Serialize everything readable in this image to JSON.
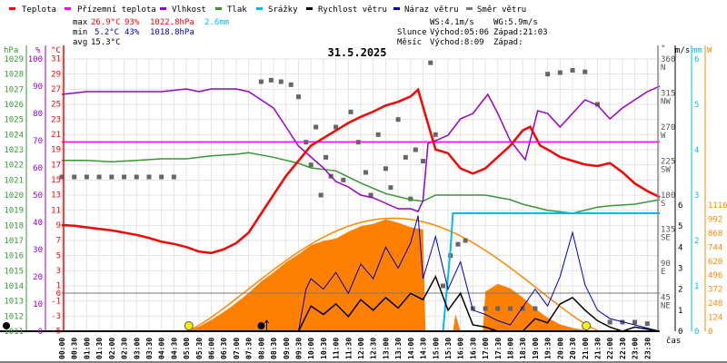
{
  "legend": [
    {
      "label": "Teplota",
      "color": "#ff0000"
    },
    {
      "label": "Přízemní teplota",
      "color": "#ff00ff"
    },
    {
      "label": "Vlhkost",
      "color": "#9900cc"
    },
    {
      "label": "Tlak",
      "color": "#339933"
    },
    {
      "label": "Srážky",
      "color": "#00bbee"
    },
    {
      "label": "Rychlost větru",
      "color": "#000000"
    },
    {
      "label": "Náraz větru",
      "color": "#0000cc"
    },
    {
      "label": "Směr větru",
      "color": "#777777"
    }
  ],
  "stats": {
    "max_label": "max",
    "max_temp": "26.9°C",
    "max_hum": "93%",
    "max_press": "1022.8hPa",
    "rain": "2.6mm",
    "min_label": "min",
    "min_temp": "5.2°C",
    "min_hum": "43%",
    "min_press": "1018.8hPa",
    "avg_label": "avg",
    "avg_temp": "15.3°C",
    "ws": "WS:4.1m/s",
    "wg": "WG:5.9m/s",
    "sun_label": "Slunce",
    "sunrise": "Východ:05:06",
    "sunset": "Západ:21:03",
    "moon_label": "Měsíc",
    "moonrise": "Východ:8:09",
    "moonset": "Západ:"
  },
  "chart_data": {
    "type": "line",
    "title": "31.5.2025",
    "xlabel": "čas",
    "x_range_hours": [
      0,
      24
    ],
    "axis_units": {
      "pressure": "hPa",
      "humidity": "%",
      "temperature": "°C",
      "direction": "°",
      "wind": "m/s",
      "rain": "mm",
      "solar": "W"
    },
    "ticks": {
      "pressure": [
        "1029",
        "1028",
        "1027",
        "1026",
        "1025",
        "1024",
        "1023",
        "1022",
        "1021",
        "1020",
        "1019",
        "1018",
        "1017",
        "1016",
        "1015",
        "1014",
        "1013",
        "1012",
        "1011"
      ],
      "humidity": [
        "100",
        "90",
        "80",
        "70",
        "60",
        "50",
        "40",
        "30",
        "20",
        "10",
        "0"
      ],
      "temperature": [
        "31",
        "29",
        "27",
        "25",
        "23",
        "21",
        "19",
        "17",
        "15",
        "13",
        "11",
        "9",
        "7",
        "5",
        "3",
        "1",
        "0",
        "-1",
        "-3",
        "-5"
      ],
      "direction": [
        [
          "360",
          "N"
        ],
        [
          "315",
          "NW"
        ],
        [
          "270",
          "W"
        ],
        [
          "225",
          "SW"
        ],
        [
          "180",
          "S"
        ],
        [
          "135",
          "SE"
        ],
        [
          "90",
          "E"
        ],
        [
          "45",
          "NE"
        ]
      ],
      "wind": [
        "6",
        "5",
        "4",
        "3",
        "2",
        "1",
        "0"
      ],
      "rain": [
        "6",
        "5",
        "4",
        "3",
        "2",
        "1",
        "0"
      ],
      "solar": [
        "1116",
        "992",
        "868",
        "744",
        "620",
        "496",
        "372",
        "248",
        "124",
        "0"
      ],
      "time": [
        "00:00",
        "00:30",
        "01:00",
        "01:30",
        "02:00",
        "02:30",
        "03:00",
        "03:30",
        "04:00",
        "04:30",
        "05:00",
        "05:30",
        "06:00",
        "06:30",
        "07:00",
        "07:30",
        "08:00",
        "08:30",
        "09:00",
        "09:30",
        "10:00",
        "10:30",
        "11:00",
        "11:30",
        "12:00",
        "12:30",
        "13:00",
        "13:30",
        "14:00",
        "14:30",
        "15:00",
        "15:30",
        "16:00",
        "16:30",
        "17:00",
        "17:30",
        "18:00",
        "18:30",
        "19:00",
        "19:30",
        "20:00",
        "20:30",
        "21:00",
        "21:30",
        "22:00",
        "22:30",
        "23:00",
        "23:30"
      ]
    },
    "apparent_temperature_c": 20,
    "series": {
      "temperature": [
        [
          0,
          9
        ],
        [
          0.5,
          8.9
        ],
        [
          1,
          8.7
        ],
        [
          1.5,
          8.5
        ],
        [
          2,
          8.3
        ],
        [
          2.5,
          8
        ],
        [
          3,
          7.7
        ],
        [
          3.5,
          7.3
        ],
        [
          4,
          6.8
        ],
        [
          4.5,
          6.5
        ],
        [
          5,
          6.1
        ],
        [
          5.5,
          5.5
        ],
        [
          6,
          5.3
        ],
        [
          6.5,
          5.8
        ],
        [
          7,
          6.6
        ],
        [
          7.5,
          8
        ],
        [
          8,
          10.5
        ],
        [
          8.5,
          13
        ],
        [
          9,
          15.5
        ],
        [
          9.5,
          17.5
        ],
        [
          10,
          19.5
        ],
        [
          10.5,
          20.5
        ],
        [
          11,
          21.5
        ],
        [
          11.5,
          22.5
        ],
        [
          12,
          23.3
        ],
        [
          12.5,
          24
        ],
        [
          13,
          24.8
        ],
        [
          13.5,
          25.3
        ],
        [
          14,
          26
        ],
        [
          14.3,
          26.9
        ],
        [
          14.6,
          23.5
        ],
        [
          15,
          19
        ],
        [
          15.5,
          18.5
        ],
        [
          16,
          16.5
        ],
        [
          16.5,
          15.8
        ],
        [
          17,
          16.5
        ],
        [
          17.5,
          18
        ],
        [
          18,
          19.5
        ],
        [
          18.5,
          21.5
        ],
        [
          18.8,
          22
        ],
        [
          19.2,
          19.5
        ],
        [
          19.5,
          19
        ],
        [
          20,
          18
        ],
        [
          20.5,
          17.5
        ],
        [
          21,
          17
        ],
        [
          21.5,
          16.8
        ],
        [
          22,
          17.2
        ],
        [
          22.5,
          16
        ],
        [
          23,
          14.5
        ],
        [
          23.5,
          13.5
        ],
        [
          24,
          12.7
        ]
      ],
      "humidity": [
        [
          0,
          87
        ],
        [
          1,
          88
        ],
        [
          2,
          88
        ],
        [
          3,
          88
        ],
        [
          4,
          88
        ],
        [
          5,
          89
        ],
        [
          5.5,
          88
        ],
        [
          6,
          89
        ],
        [
          7,
          89
        ],
        [
          7.5,
          88
        ],
        [
          8,
          85
        ],
        [
          8.5,
          82
        ],
        [
          9,
          75
        ],
        [
          9.5,
          68
        ],
        [
          10,
          64
        ],
        [
          10.5,
          60
        ],
        [
          11,
          55
        ],
        [
          11.5,
          53
        ],
        [
          12,
          50
        ],
        [
          12.5,
          49
        ],
        [
          13,
          47
        ],
        [
          13.5,
          45
        ],
        [
          14,
          45
        ],
        [
          14.3,
          44
        ],
        [
          14.5,
          48
        ],
        [
          14.7,
          69
        ],
        [
          15,
          70
        ],
        [
          15.5,
          72
        ],
        [
          16,
          78
        ],
        [
          16.5,
          80
        ],
        [
          17.1,
          87
        ],
        [
          17.5,
          80
        ],
        [
          18,
          70
        ],
        [
          18.6,
          63
        ],
        [
          19.1,
          81
        ],
        [
          19.5,
          80
        ],
        [
          20,
          75
        ],
        [
          20.5,
          80
        ],
        [
          21,
          85
        ],
        [
          21.5,
          83
        ],
        [
          22,
          78
        ],
        [
          22.5,
          82
        ],
        [
          23,
          85
        ],
        [
          23.5,
          88
        ],
        [
          24,
          90
        ]
      ],
      "pressure": [
        [
          0,
          1022.3
        ],
        [
          1,
          1022.3
        ],
        [
          2,
          1022.2
        ],
        [
          3,
          1022.3
        ],
        [
          4,
          1022.4
        ],
        [
          5,
          1022.4
        ],
        [
          6,
          1022.6
        ],
        [
          7,
          1022.7
        ],
        [
          7.5,
          1022.8
        ],
        [
          8.5,
          1022.5
        ],
        [
          9.5,
          1022.1
        ],
        [
          10,
          1021.8
        ],
        [
          11,
          1021.6
        ],
        [
          12,
          1020.8
        ],
        [
          13,
          1020.1
        ],
        [
          14,
          1019.7
        ],
        [
          14.5,
          1019.6
        ],
        [
          15,
          1020
        ],
        [
          16,
          1020
        ],
        [
          17,
          1020
        ],
        [
          18,
          1019.7
        ],
        [
          18.5,
          1019.4
        ],
        [
          19.5,
          1019
        ],
        [
          20.5,
          1018.8
        ],
        [
          21.5,
          1019.2
        ],
        [
          22,
          1019.3
        ],
        [
          23,
          1019.4
        ],
        [
          24,
          1019.7
        ]
      ],
      "rain_cumulative_mm": [
        [
          0,
          0
        ],
        [
          15.3,
          0
        ],
        [
          15.6,
          1.8
        ],
        [
          15.7,
          2.6
        ],
        [
          24,
          2.6
        ]
      ],
      "solar_w": [
        [
          5,
          0
        ],
        [
          5.5,
          40
        ],
        [
          6,
          100
        ],
        [
          6.5,
          170
        ],
        [
          7,
          250
        ],
        [
          7.5,
          340
        ],
        [
          8,
          440
        ],
        [
          8.5,
          520
        ],
        [
          9,
          610
        ],
        [
          9.5,
          680
        ],
        [
          10,
          760
        ],
        [
          10.5,
          800
        ],
        [
          11,
          820
        ],
        [
          11.5,
          880
        ],
        [
          12,
          930
        ],
        [
          12.5,
          950
        ],
        [
          13,
          990
        ],
        [
          13.5,
          960
        ],
        [
          14,
          920
        ],
        [
          14.5,
          900
        ],
        [
          14.6,
          0
        ],
        [
          15.7,
          0
        ],
        [
          15.8,
          150
        ],
        [
          16,
          0
        ],
        [
          16.9,
          0
        ],
        [
          17,
          350
        ],
        [
          17.5,
          420
        ],
        [
          18,
          380
        ],
        [
          18.5,
          300
        ],
        [
          19,
          200
        ],
        [
          19.5,
          120
        ],
        [
          20,
          60
        ],
        [
          20.5,
          30
        ],
        [
          21,
          10
        ],
        [
          21.5,
          0
        ]
      ],
      "solar_clear_sky_peak_w": 1000,
      "wind_speed": [
        [
          0,
          0
        ],
        [
          9.5,
          0
        ],
        [
          10,
          1.2
        ],
        [
          10.5,
          0.8
        ],
        [
          11,
          1.3
        ],
        [
          11.5,
          0.7
        ],
        [
          12,
          1.5
        ],
        [
          12.5,
          1.0
        ],
        [
          13,
          1.6
        ],
        [
          13.5,
          1.1
        ],
        [
          14,
          1.8
        ],
        [
          14.5,
          1.5
        ],
        [
          15,
          2.6
        ],
        [
          15.5,
          1.0
        ],
        [
          16,
          1.8
        ],
        [
          16.5,
          0.3
        ],
        [
          17,
          0.2
        ],
        [
          17.5,
          0
        ],
        [
          18.5,
          0
        ],
        [
          19,
          0.6
        ],
        [
          19.5,
          0.4
        ],
        [
          20,
          1.3
        ],
        [
          20.5,
          1.6
        ],
        [
          21,
          1.0
        ],
        [
          21.5,
          0.5
        ],
        [
          22,
          0.2
        ],
        [
          22.5,
          0
        ],
        [
          23,
          0.2
        ],
        [
          24,
          0
        ]
      ],
      "wind_gust": [
        [
          0,
          0
        ],
        [
          9.5,
          0
        ],
        [
          9.8,
          2.0
        ],
        [
          10,
          2.5
        ],
        [
          10.5,
          2.0
        ],
        [
          11,
          2.8
        ],
        [
          11.5,
          1.8
        ],
        [
          12,
          3.2
        ],
        [
          12.5,
          2.5
        ],
        [
          13,
          4.0
        ],
        [
          13.5,
          3.0
        ],
        [
          14,
          4.2
        ],
        [
          14.3,
          5.5
        ],
        [
          14.5,
          2.5
        ],
        [
          15,
          4.5
        ],
        [
          15.5,
          2.0
        ],
        [
          16,
          3.3
        ],
        [
          16.5,
          1.0
        ],
        [
          17,
          0.8
        ],
        [
          17.5,
          0.5
        ],
        [
          18,
          0.3
        ],
        [
          19,
          2.0
        ],
        [
          19.5,
          1.2
        ],
        [
          20,
          2.6
        ],
        [
          20.5,
          4.7
        ],
        [
          21,
          2.2
        ],
        [
          21.5,
          1.0
        ],
        [
          22,
          0.6
        ],
        [
          23,
          0.3
        ],
        [
          24,
          0
        ]
      ],
      "wind_direction": [
        [
          0,
          204
        ],
        [
          0.5,
          204
        ],
        [
          1,
          204
        ],
        [
          1.5,
          204
        ],
        [
          2,
          204
        ],
        [
          2.5,
          204
        ],
        [
          3,
          204
        ],
        [
          3.5,
          204
        ],
        [
          4,
          204
        ],
        [
          4.5,
          204
        ],
        [
          8,
          330
        ],
        [
          8.4,
          332
        ],
        [
          8.8,
          330
        ],
        [
          9.2,
          326
        ],
        [
          9.5,
          310
        ],
        [
          9.8,
          250
        ],
        [
          10,
          220
        ],
        [
          10.2,
          270
        ],
        [
          10.4,
          180
        ],
        [
          10.6,
          230
        ],
        [
          10.8,
          205
        ],
        [
          11,
          270
        ],
        [
          11.3,
          200
        ],
        [
          11.6,
          290
        ],
        [
          11.9,
          250
        ],
        [
          12.2,
          210
        ],
        [
          12.4,
          180
        ],
        [
          12.7,
          260
        ],
        [
          13,
          215
        ],
        [
          13.2,
          190
        ],
        [
          13.5,
          280
        ],
        [
          13.8,
          230
        ],
        [
          14,
          175
        ],
        [
          14.2,
          240
        ],
        [
          14.5,
          225
        ],
        [
          14.8,
          355
        ],
        [
          15,
          260
        ],
        [
          15.3,
          60
        ],
        [
          15.6,
          100
        ],
        [
          15.9,
          115
        ],
        [
          16.2,
          120
        ],
        [
          16.5,
          30
        ],
        [
          17,
          30
        ],
        [
          17.5,
          30
        ],
        [
          18,
          30
        ],
        [
          18.5,
          30
        ],
        [
          19,
          30
        ],
        [
          19.5,
          340
        ],
        [
          20,
          342
        ],
        [
          20.5,
          345
        ],
        [
          21,
          343
        ],
        [
          21.5,
          300
        ],
        [
          22,
          12
        ],
        [
          22.5,
          12
        ],
        [
          23,
          12
        ],
        [
          23.5,
          10
        ]
      ]
    },
    "sun_moon_markers": {
      "sunrise_h": 5.1,
      "sunset_h": 21.05,
      "moonrise_h": 8.15
    }
  }
}
